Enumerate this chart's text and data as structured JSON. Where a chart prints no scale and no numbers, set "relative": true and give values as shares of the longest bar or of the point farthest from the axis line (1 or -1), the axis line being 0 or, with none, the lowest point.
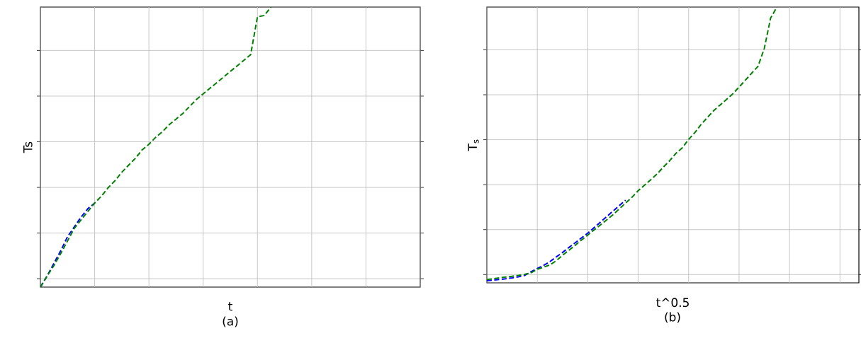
{
  "chart_data": [
    {
      "type": "line",
      "xlabel": "t",
      "ylabel": "Ts",
      "annotations": [
        "(a)"
      ],
      "relative": true,
      "grid": true,
      "line_style": "dashed",
      "marker": "none",
      "categories": [
        null,
        null,
        null,
        null,
        null,
        null,
        null,
        null,
        null,
        null,
        null,
        null,
        null,
        null,
        null,
        null,
        null,
        null,
        null,
        null,
        null,
        null,
        null,
        null,
        null,
        null,
        null,
        null,
        null,
        null,
        null,
        null,
        null,
        null,
        null,
        null,
        null,
        null,
        null,
        null,
        null,
        null,
        null,
        null,
        null,
        null,
        null,
        null,
        null,
        null,
        null,
        null,
        null,
        null,
        null,
        null,
        null
      ],
      "series": [
        {
          "color": "#0000ff",
          "values": [
            0,
            0.04,
            0.085,
            0.13,
            0.18,
            0.215,
            0.25,
            0.28,
            0.3,
            null,
            null,
            null,
            null,
            null,
            null,
            null,
            null,
            null,
            null,
            null,
            null,
            null,
            null,
            null,
            null,
            null,
            null,
            null,
            null,
            null,
            null,
            null,
            null,
            null,
            null,
            null,
            null,
            null,
            null,
            null,
            null,
            null,
            null,
            null,
            null,
            null,
            null,
            null,
            null,
            null,
            null,
            null,
            null,
            null,
            null,
            null,
            null
          ]
        },
        {
          "color": "#008000",
          "values": [
            0,
            0.04,
            0.077,
            0.12,
            0.165,
            0.21,
            0.24,
            0.27,
            0.3,
            0.325,
            0.355,
            0.38,
            0.41,
            0.435,
            0.46,
            0.49,
            0.51,
            0.535,
            0.555,
            0.58,
            0.6,
            0.62,
            0.645,
            0.67,
            0.69,
            0.71,
            0.73,
            0.75,
            0.77,
            0.79,
            0.81,
            0.83,
            0.965,
            0.97,
            1,
            null,
            null,
            null,
            null,
            null,
            null,
            null,
            null,
            null,
            null,
            null,
            null,
            null,
            null,
            null,
            null,
            null,
            null,
            null,
            null,
            null,
            null
          ]
        }
      ]
    },
    {
      "type": "line",
      "xlabel": "t^0.5",
      "ylabel": "T$_{s}$",
      "annotations": [
        "(b)"
      ],
      "relative": true,
      "grid": true,
      "line_style": "dashed",
      "marker": "none",
      "categories": [
        null,
        null,
        null,
        null,
        null,
        null,
        null,
        null,
        null,
        null,
        null,
        null,
        null,
        null,
        null,
        null,
        null,
        null,
        null,
        null,
        null,
        null,
        null,
        null,
        null,
        null,
        null,
        null,
        null,
        null,
        null,
        null,
        null,
        null,
        null,
        null,
        null,
        null,
        null,
        null,
        null,
        null,
        null,
        null,
        null,
        null,
        null,
        null,
        null,
        null,
        null,
        null,
        null,
        null,
        null,
        null,
        null,
        null,
        null,
        null
      ],
      "series": [
        {
          "color": "#0000ff",
          "values": [
            0.008,
            0.01,
            0.012,
            0.015,
            0.018,
            0.022,
            0.027,
            0.04,
            0.052,
            0.063,
            0.077,
            0.094,
            0.11,
            0.128,
            0.145,
            0.163,
            0.18,
            0.2,
            0.22,
            0.24,
            0.26,
            0.28,
            0.3,
            null,
            null,
            null,
            null,
            null,
            null,
            null,
            null,
            null,
            null,
            null,
            null,
            null,
            null,
            null,
            null,
            null,
            null,
            null,
            null,
            null,
            null,
            null,
            null,
            null,
            null,
            null,
            null,
            null,
            null,
            null,
            null,
            null,
            null,
            null,
            null,
            null
          ]
        },
        {
          "color": "#008000",
          "values": [
            0.012,
            0.015,
            0.018,
            0.021,
            0.024,
            0.027,
            0.031,
            0.036,
            0.049,
            0.057,
            0.065,
            0.08,
            0.1,
            0.118,
            0.136,
            0.155,
            0.173,
            0.192,
            0.21,
            0.228,
            0.247,
            0.268,
            0.289,
            0.31,
            0.334,
            0.354,
            0.374,
            0.395,
            0.42,
            0.443,
            0.47,
            0.49,
            0.52,
            0.545,
            0.575,
            0.6,
            0.625,
            0.645,
            0.665,
            0.685,
            0.71,
            0.735,
            0.76,
            0.785,
            0.85,
            0.96,
            1,
            null,
            null,
            null,
            null,
            null,
            null,
            null,
            null,
            null,
            null,
            null,
            null,
            null
          ]
        }
      ]
    }
  ]
}
